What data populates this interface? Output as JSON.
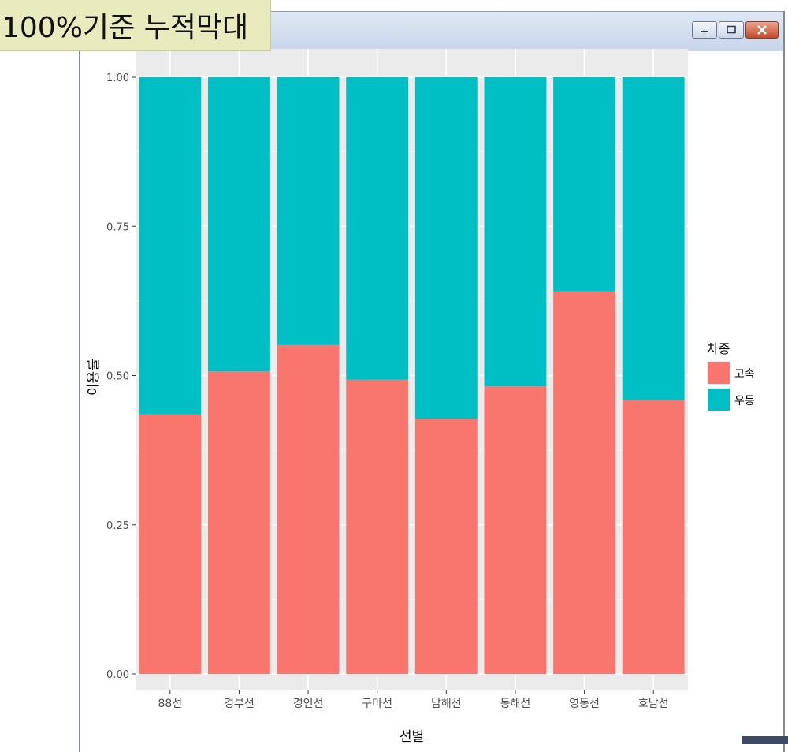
{
  "window": {
    "title_label": "100%기준 누적막대",
    "controls": {
      "minimize_icon": "minimize-icon",
      "maximize_icon": "maximize-icon",
      "close_icon": "close-icon"
    }
  },
  "colors": {
    "series_gosok": "#F8766D",
    "series_udeung": "#00BFC4",
    "panel_bg": "#EBEBEB",
    "grid": "#FFFFFF"
  },
  "chart_data": {
    "type": "bar",
    "stacked": "fill",
    "categories": [
      "88선",
      "경부선",
      "경인선",
      "구마선",
      "남해선",
      "동해선",
      "영동선",
      "호남선"
    ],
    "series": [
      {
        "name": "고속",
        "values": [
          0.435,
          0.507,
          0.551,
          0.493,
          0.428,
          0.482,
          0.641,
          0.459
        ]
      },
      {
        "name": "우등",
        "values": [
          0.565,
          0.493,
          0.449,
          0.507,
          0.572,
          0.518,
          0.359,
          0.541
        ]
      }
    ],
    "ylim": [
      0,
      1
    ],
    "yticks": [
      "0.00",
      "0.25",
      "0.50",
      "0.75",
      "1.00"
    ],
    "ytick_values": [
      0,
      0.25,
      0.5,
      0.75,
      1
    ],
    "xlabel": "선별",
    "ylabel": "이용률",
    "legend_title": "차종",
    "legend_position": "right",
    "grid": true
  }
}
